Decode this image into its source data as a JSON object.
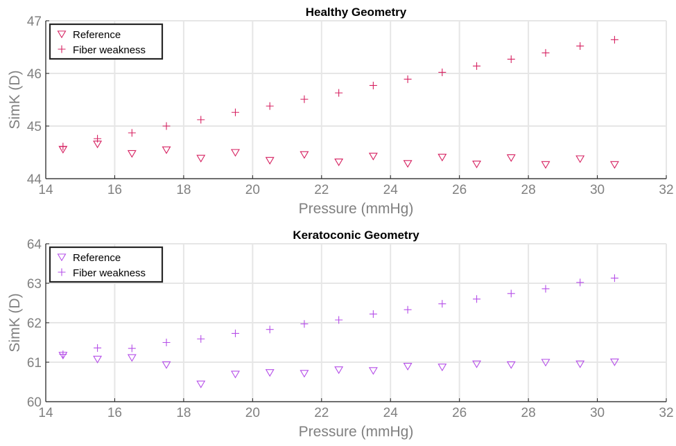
{
  "chart_data": [
    {
      "type": "scatter",
      "title": "Healthy Geometry",
      "xlabel": "Pressure (mmHg)",
      "ylabel": "SimK (D)",
      "xlim": [
        14,
        32
      ],
      "ylim": [
        44,
        47
      ],
      "xticks": [
        "14",
        "16",
        "18",
        "20",
        "22",
        "24",
        "26",
        "28",
        "30",
        "32"
      ],
      "yticks": [
        "44",
        "45",
        "46",
        "47"
      ],
      "grid": true,
      "legend": "top-left",
      "color": "#d62060",
      "series": [
        {
          "name": "Reference",
          "marker": "triangle-down",
          "x": [
            14.5,
            15.5,
            16.5,
            17.5,
            18.5,
            19.5,
            20.5,
            21.5,
            22.5,
            23.5,
            24.5,
            25.5,
            26.5,
            27.5,
            28.5,
            29.5,
            30.5
          ],
          "y": [
            44.56,
            44.66,
            44.48,
            44.55,
            44.39,
            44.5,
            44.35,
            44.46,
            44.32,
            44.43,
            44.29,
            44.41,
            44.28,
            44.4,
            44.27,
            44.38,
            44.27
          ]
        },
        {
          "name": "Fiber weakness",
          "marker": "plus",
          "x": [
            14.5,
            15.5,
            16.5,
            17.5,
            18.5,
            19.5,
            20.5,
            21.5,
            22.5,
            23.5,
            24.5,
            25.5,
            26.5,
            27.5,
            28.5,
            29.5,
            30.5
          ],
          "y": [
            44.61,
            44.76,
            44.87,
            45.0,
            45.12,
            45.26,
            45.38,
            45.51,
            45.63,
            45.77,
            45.89,
            46.02,
            46.14,
            46.27,
            46.39,
            46.52,
            46.64
          ]
        }
      ]
    },
    {
      "type": "scatter",
      "title": "Keratoconic Geometry",
      "xlabel": "Pressure (mmHg)",
      "ylabel": "SimK (D)",
      "xlim": [
        14,
        32
      ],
      "ylim": [
        60,
        64
      ],
      "xticks": [
        "14",
        "16",
        "18",
        "20",
        "22",
        "24",
        "26",
        "28",
        "30",
        "32"
      ],
      "yticks": [
        "60",
        "61",
        "62",
        "63",
        "64"
      ],
      "grid": true,
      "legend": "top-left",
      "color": "#b54ee8",
      "series": [
        {
          "name": "Reference",
          "marker": "triangle-down",
          "x": [
            14.5,
            15.5,
            16.5,
            17.5,
            18.5,
            19.5,
            20.5,
            21.5,
            22.5,
            23.5,
            24.5,
            25.5,
            26.5,
            27.5,
            28.5,
            29.5,
            30.5
          ],
          "y": [
            61.18,
            61.08,
            61.12,
            60.94,
            60.45,
            60.7,
            60.74,
            60.72,
            60.81,
            60.79,
            60.9,
            60.88,
            60.96,
            60.94,
            61.0,
            60.96,
            61.01
          ]
        },
        {
          "name": "Fiber weakness",
          "marker": "plus",
          "x": [
            14.5,
            15.5,
            16.5,
            17.5,
            18.5,
            19.5,
            20.5,
            21.5,
            22.5,
            23.5,
            24.5,
            25.5,
            26.5,
            27.5,
            28.5,
            29.5,
            30.5
          ],
          "y": [
            61.2,
            61.36,
            61.35,
            61.5,
            61.59,
            61.73,
            61.83,
            61.97,
            62.07,
            62.22,
            62.33,
            62.48,
            62.6,
            62.74,
            62.86,
            63.02,
            63.13
          ]
        }
      ]
    }
  ]
}
